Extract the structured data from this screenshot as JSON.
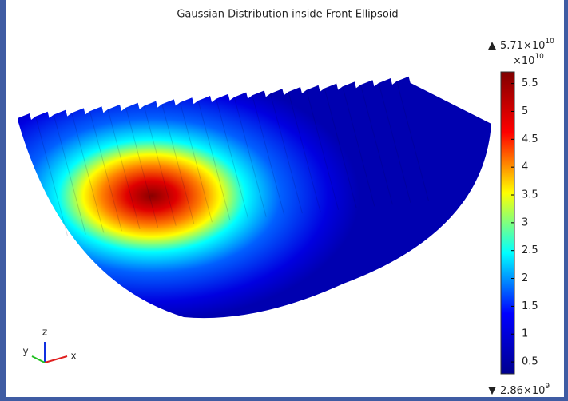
{
  "chart_data": {
    "type": "slice",
    "title": "Gaussian Distribution inside Front Ellipsoid",
    "colorbar": {
      "max_label": "5.71×10",
      "max_label_exponent": "10",
      "multiplier": "×10",
      "multiplier_exponent": "10",
      "min_label": "2.86×10",
      "min_label_exponent": "9",
      "clim": [
        0.286,
        5.71
      ],
      "ticks": [
        0.5,
        1,
        1.5,
        2,
        2.5,
        3,
        3.5,
        4,
        4.5,
        5,
        5.5
      ],
      "colormap": [
        "#00008f",
        "#0000ff",
        "#00ffff",
        "#ffff00",
        "#ff0000",
        "#800000"
      ]
    },
    "axes_triad": {
      "x": "x",
      "y": "y",
      "z": "z"
    }
  }
}
